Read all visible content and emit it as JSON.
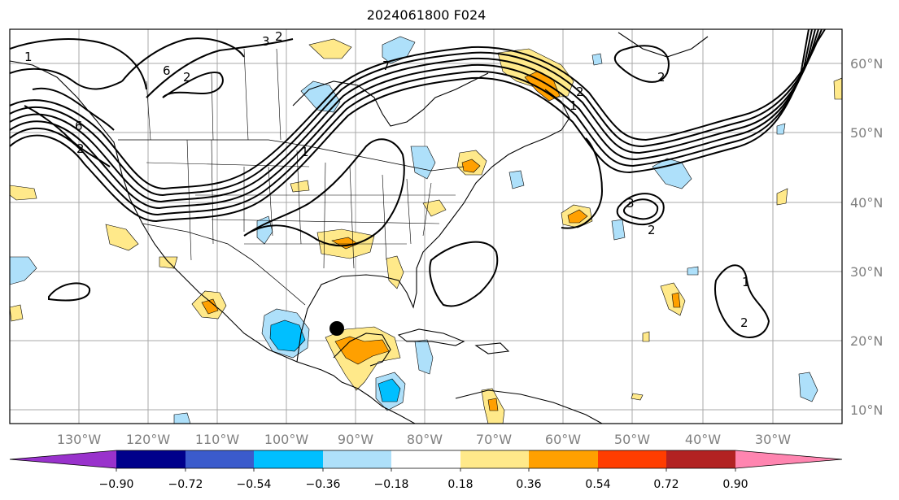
{
  "title": "2024061800 F024",
  "map": {
    "lon_labels": [
      "130°W",
      "120°W",
      "110°W",
      "100°W",
      "90°W",
      "80°W",
      "70°W",
      "60°W",
      "50°W",
      "40°W",
      "30°W"
    ],
    "lat_labels": [
      "60°N",
      "50°N",
      "40°N",
      "30°N",
      "20°N",
      "10°N"
    ],
    "contour_labels": [
      "1",
      "6",
      "2",
      "7",
      "2",
      "1",
      "3",
      "2",
      "1",
      "2",
      "6",
      "2",
      "3",
      "2",
      "1",
      "2"
    ],
    "grid": true,
    "projection": "equirectangular"
  },
  "colorbar": {
    "tick_labels": [
      "−0.90",
      "−0.72",
      "−0.54",
      "−0.36",
      "−0.18",
      "0.18",
      "0.36",
      "0.54",
      "0.72",
      "0.90"
    ],
    "levels": [
      -0.9,
      -0.72,
      -0.54,
      -0.36,
      -0.18,
      0.18,
      0.36,
      0.54,
      0.72,
      0.9
    ],
    "colors": [
      "#9932cc",
      "#00008b",
      "#3b5bcc",
      "#00bfff",
      "#aee0fa",
      "#ffffff",
      "#ffe98a",
      "#ffa000",
      "#ff3d00",
      "#b22222",
      "#ff85b0"
    ],
    "extend": "both"
  },
  "marker": {
    "name": "storm-center",
    "lon": -93.5,
    "lat": 21.8,
    "color": "#000000"
  },
  "colors": {
    "grid": "#a9a9a9",
    "contour": "#000000",
    "coast": "#000000",
    "tick_text": "#808080"
  }
}
